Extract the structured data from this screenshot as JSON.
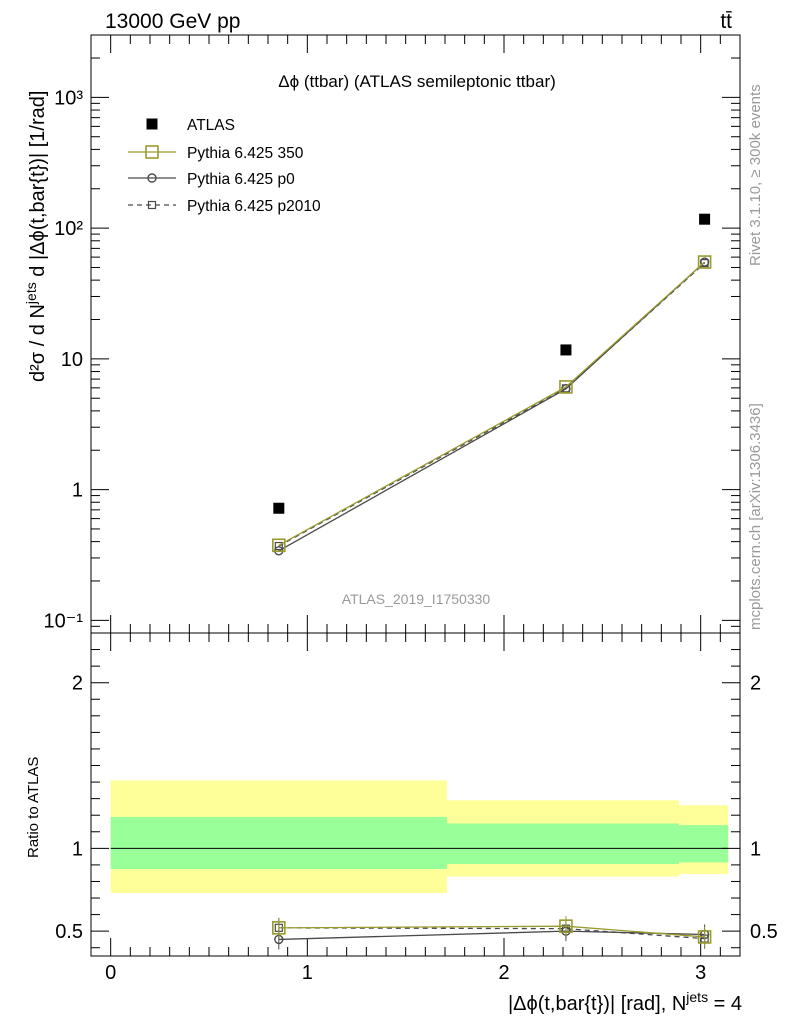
{
  "header": {
    "left": "13000 GeV pp",
    "right": "tt̄"
  },
  "side_labels": {
    "rivet": "Rivet 3.1.10, ≥ 300k events",
    "mcplots": "mcplots.cern.ch [arXiv:1306.3436]"
  },
  "colors": {
    "atlas": "#000000",
    "pythia_350": "#9a9a2e",
    "pythia_p0": "#4a4a4a",
    "pythia_p2010": "#4a4a4a",
    "band_inner": "#99ff99",
    "band_outer": "#ffff99"
  },
  "chart_data": [
    {
      "type": "scatter",
      "title": "Δϕ (ttbar) (ATLAS semileptonic ttbar)",
      "watermark": "ATLAS_2019_I1750330",
      "ylabel": "d²σ / d N^jets d |Δϕ(t,bar{t})| [1/rad]",
      "yscale": "log",
      "ylim": [
        0.08,
        3000
      ],
      "xlim": [
        -0.1,
        3.2
      ],
      "y_tick_labels": [
        "10⁻¹",
        "1",
        "10",
        "10²",
        "10³"
      ],
      "y_ticks": [
        0.1,
        1,
        10,
        100,
        1000
      ],
      "x": [
        0.855,
        2.315,
        3.02
      ],
      "series": [
        {
          "name": "ATLAS",
          "values": [
            0.72,
            11.7,
            117
          ],
          "marker": "filled-square"
        },
        {
          "name": "Pythia 6.425 350",
          "values": [
            0.375,
            6.1,
            55
          ],
          "marker": "open-square",
          "line": "solid"
        },
        {
          "name": "Pythia 6.425 p0",
          "values": [
            0.34,
            5.9,
            55
          ],
          "marker": "open-circle",
          "line": "solid"
        },
        {
          "name": "Pythia 6.425 p2010",
          "values": [
            0.37,
            5.95,
            54
          ],
          "marker": "small-open-square",
          "line": "dashed"
        }
      ],
      "legend_position": "top-left"
    },
    {
      "type": "line",
      "ylabel": "Ratio to ATLAS",
      "xlabel": "|Δϕ(t,bar{t})| [rad], N^jets = 4",
      "ylim": [
        0.35,
        2.3
      ],
      "xlim": [
        -0.1,
        3.2
      ],
      "x_ticks": [
        0,
        1,
        2,
        3
      ],
      "x_tick_labels": [
        "0",
        "1",
        "2",
        "3"
      ],
      "y_ticks": [
        0.5,
        1,
        2
      ],
      "y_tick_labels": [
        "0.5",
        "1",
        "2"
      ],
      "bins": [
        {
          "lo": 0.0,
          "hi": 1.71,
          "inner": [
            0.875,
            1.19
          ],
          "outer": [
            0.73,
            1.41
          ]
        },
        {
          "lo": 1.71,
          "hi": 2.89,
          "inner": [
            0.905,
            1.15
          ],
          "outer": [
            0.83,
            1.29
          ]
        },
        {
          "lo": 2.89,
          "hi": 3.14,
          "inner": [
            0.915,
            1.14
          ],
          "outer": [
            0.845,
            1.26
          ]
        }
      ],
      "x": [
        0.855,
        2.315,
        3.02
      ],
      "series": [
        {
          "name": "Pythia 6.425 350",
          "values": [
            0.52,
            0.53,
            0.465
          ]
        },
        {
          "name": "Pythia 6.425 p0",
          "values": [
            0.45,
            0.5,
            0.48
          ]
        },
        {
          "name": "Pythia 6.425 p2010",
          "values": [
            0.52,
            0.515,
            0.455
          ]
        }
      ]
    }
  ]
}
